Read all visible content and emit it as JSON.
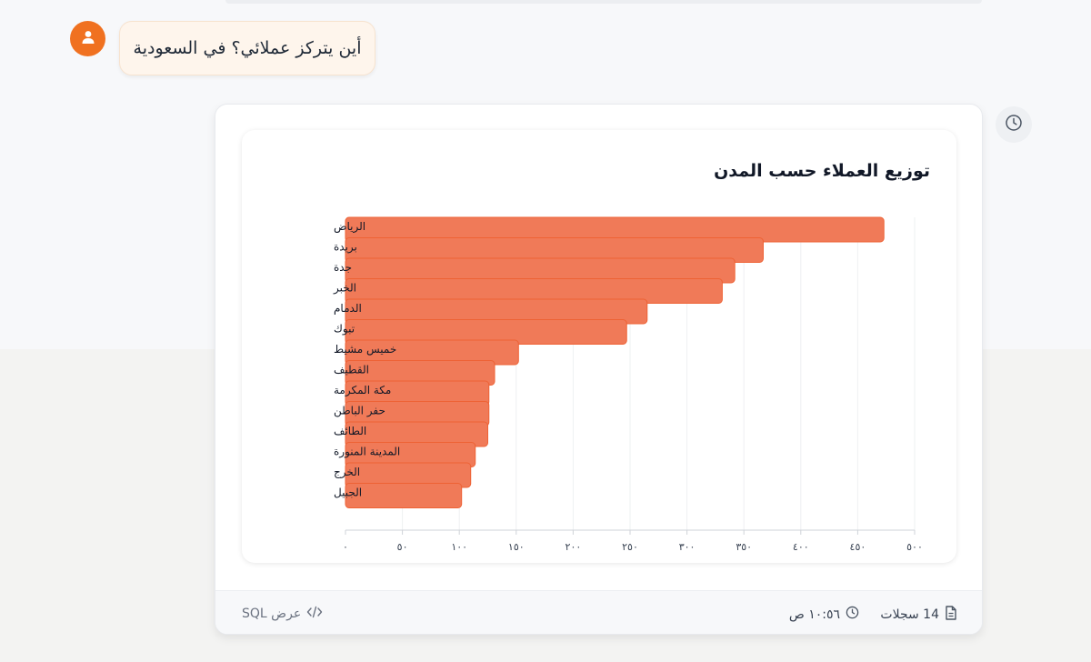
{
  "user_message": {
    "text": "أين يتركز عملائي؟ في السعودية",
    "avatar_icon": "user-icon",
    "avatar_color": "#f07120"
  },
  "history_icon": "clock-icon",
  "chart_card": {
    "title": "توزيع العملاء حسب المدن"
  },
  "chart_data": {
    "type": "bar",
    "orientation": "horizontal",
    "title": "توزيع العملاء حسب المدن",
    "categories": [
      "الرياض",
      "بريدة",
      "جدة",
      "الخبر",
      "الدمام",
      "تبوك",
      "خميس مشيط",
      "القطيف",
      "مكة المكرمة",
      "حفر الباطن",
      "الطائف",
      "المدينة المنورة",
      "الخرج",
      "الجبيل"
    ],
    "values": [
      473,
      367,
      342,
      331,
      265,
      247,
      152,
      131,
      126,
      126,
      125,
      114,
      110,
      102
    ],
    "xlim": [
      0,
      500
    ],
    "x_ticks": [
      0,
      50,
      100,
      150,
      200,
      250,
      300,
      350,
      400,
      450,
      500
    ],
    "x_tick_labels": [
      "٠",
      "٥٠",
      "١٠٠",
      "١٥٠",
      "٢٠٠",
      "٢٥٠",
      "٣٠٠",
      "٣٥٠",
      "٤٠٠",
      "٤٥٠",
      "٥٠٠"
    ],
    "bar_color": "#f07a58",
    "bar_edge_color": "#ee6235",
    "grid": true
  },
  "footer": {
    "records_label": "14 سجلات",
    "records_icon": "document-icon",
    "time_label": "١٠:٥٦ ص",
    "time_icon": "clock-icon",
    "sql_label": "عرض SQL",
    "sql_icon": "code-icon"
  }
}
